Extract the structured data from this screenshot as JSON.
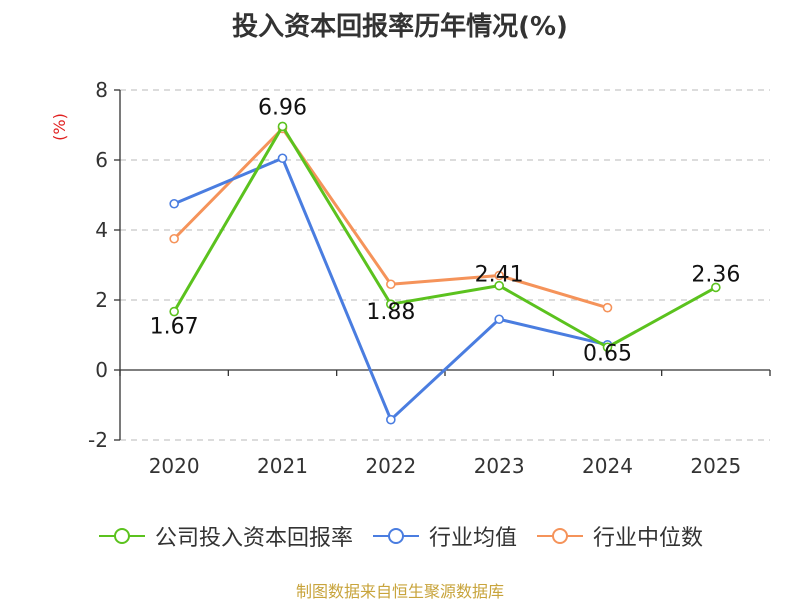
{
  "title": "投入资本回报率历年情况(%)",
  "source": "制图数据来自恒生聚源数据库",
  "chart_data": {
    "type": "line",
    "title": "投入资本回报率历年情况(%)",
    "ylabel": "(%)",
    "ylim": [
      -2,
      8
    ],
    "yticks": [
      "8",
      "6",
      "4",
      "2",
      "0",
      "-2"
    ],
    "categories": [
      "2020",
      "2021",
      "2022",
      "2023",
      "2024",
      "2025"
    ],
    "grid": true,
    "legend_position": "bottom",
    "series": [
      {
        "name": "公司投入资本回报率",
        "color": "#5bc21e",
        "values": [
          1.67,
          6.96,
          1.88,
          2.41,
          0.65,
          2.36
        ],
        "labels": [
          "1.67",
          "6.96",
          "1.88",
          "2.41",
          "0.65",
          "2.36"
        ]
      },
      {
        "name": "行业均值",
        "color": "#4a7de0",
        "values": [
          4.75,
          6.05,
          -1.42,
          1.45,
          0.72,
          null
        ]
      },
      {
        "name": "行业中位数",
        "color": "#f5935a",
        "values": [
          3.75,
          6.9,
          2.45,
          2.7,
          1.78,
          null
        ]
      }
    ]
  }
}
